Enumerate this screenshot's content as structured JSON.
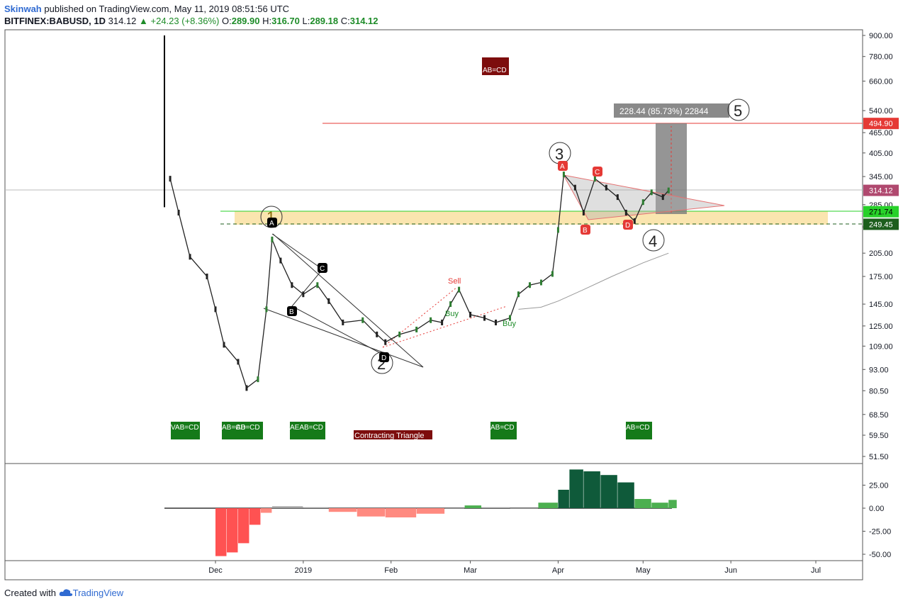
{
  "header": {
    "user": "Skinwah",
    "published": "published on TradingView.com, May 11, 2019 08:51:56 UTC",
    "symbol": "BITFINEX:BABUSD, 1D",
    "last": "314.12",
    "change": "▲ +24.23 (+8.36%)",
    "o_label": "O:",
    "o_value": "289.90",
    "h_label": "H:",
    "h_value": "316.70",
    "l_label": "L:",
    "l_value": "289.18",
    "c_label": "C:",
    "c_value": "314.12"
  },
  "footer": {
    "created_with": "Created with",
    "brand": "TradingView"
  },
  "colors": {
    "up": "#1e8c29",
    "down": "#d32f2f",
    "accent": "#2f6ad1"
  },
  "chart_data": {
    "type": "candlestick",
    "scale": "log",
    "price_ticks": [
      "900.00",
      "780.00",
      "660.00",
      "540.00",
      "465.00",
      "405.00",
      "345.00",
      "285.00",
      "245.00",
      "205.00",
      "175.00",
      "145.00",
      "125.00",
      "109.00",
      "93.00",
      "80.50",
      "68.50",
      "59.50",
      "51.50"
    ],
    "time_ticks": [
      "Dec",
      "2019",
      "Feb",
      "Mar",
      "Apr",
      "May",
      "Jun",
      "Jul"
    ],
    "price_labels": [
      {
        "text": "494.90",
        "price": 494.9,
        "color": "#e53935"
      },
      {
        "text": "314.12",
        "price": 314.12,
        "color": "#b0496f"
      },
      {
        "text": "271.74",
        "price": 271.74,
        "color": "#28d12a"
      },
      {
        "text": "249.45",
        "price": 249.45,
        "color": "#1d5e1d"
      }
    ],
    "price_path": [
      {
        "date": "2018-11-15",
        "price": 340
      },
      {
        "date": "2018-11-18",
        "price": 270
      },
      {
        "date": "2018-11-22",
        "price": 200
      },
      {
        "date": "2018-11-28",
        "price": 175
      },
      {
        "date": "2018-12-01",
        "price": 140
      },
      {
        "date": "2018-12-04",
        "price": 110
      },
      {
        "date": "2018-12-09",
        "price": 98
      },
      {
        "date": "2018-12-12",
        "price": 82
      },
      {
        "date": "2018-12-16",
        "price": 87
      },
      {
        "date": "2018-12-19",
        "price": 140
      },
      {
        "date": "2018-12-21",
        "price": 225
      },
      {
        "date": "2018-12-24",
        "price": 195
      },
      {
        "date": "2018-12-28",
        "price": 165
      },
      {
        "date": "2019-01-01",
        "price": 155
      },
      {
        "date": "2019-01-06",
        "price": 165
      },
      {
        "date": "2019-01-10",
        "price": 148
      },
      {
        "date": "2019-01-15",
        "price": 128
      },
      {
        "date": "2019-01-22",
        "price": 130
      },
      {
        "date": "2019-01-27",
        "price": 118
      },
      {
        "date": "2019-01-30",
        "price": 112
      },
      {
        "date": "2019-02-04",
        "price": 118
      },
      {
        "date": "2019-02-10",
        "price": 122
      },
      {
        "date": "2019-02-15",
        "price": 130
      },
      {
        "date": "2019-02-19",
        "price": 128
      },
      {
        "date": "2019-02-22",
        "price": 145
      },
      {
        "date": "2019-02-25",
        "price": 160
      },
      {
        "date": "2019-03-01",
        "price": 135
      },
      {
        "date": "2019-03-06",
        "price": 132
      },
      {
        "date": "2019-03-10",
        "price": 128
      },
      {
        "date": "2019-03-15",
        "price": 132
      },
      {
        "date": "2019-03-18",
        "price": 155
      },
      {
        "date": "2019-03-22",
        "price": 165
      },
      {
        "date": "2019-03-26",
        "price": 168
      },
      {
        "date": "2019-03-30",
        "price": 178
      },
      {
        "date": "2019-04-01",
        "price": 240
      },
      {
        "date": "2019-04-03",
        "price": 350
      },
      {
        "date": "2019-04-07",
        "price": 320
      },
      {
        "date": "2019-04-10",
        "price": 270
      },
      {
        "date": "2019-04-14",
        "price": 340
      },
      {
        "date": "2019-04-18",
        "price": 320
      },
      {
        "date": "2019-04-22",
        "price": 300
      },
      {
        "date": "2019-04-25",
        "price": 270
      },
      {
        "date": "2019-04-28",
        "price": 255
      },
      {
        "date": "2019-05-01",
        "price": 290
      },
      {
        "date": "2019-05-04",
        "price": 310
      },
      {
        "date": "2019-05-08",
        "price": 300
      },
      {
        "date": "2019-05-10",
        "price": 314
      }
    ],
    "moving_average": [
      {
        "date": "2019-03-18",
        "price": 140
      },
      {
        "date": "2019-03-26",
        "price": 142
      },
      {
        "date": "2019-04-01",
        "price": 148
      },
      {
        "date": "2019-04-10",
        "price": 160
      },
      {
        "date": "2019-04-20",
        "price": 175
      },
      {
        "date": "2019-05-01",
        "price": 192
      },
      {
        "date": "2019-05-10",
        "price": 205
      }
    ],
    "histogram": {
      "ticks": [
        "25.00",
        "0.00",
        "-25.00",
        "-50.00"
      ],
      "bars": [
        {
          "date": "2018-12-01",
          "value": -52
        },
        {
          "date": "2018-12-05",
          "value": -48
        },
        {
          "date": "2018-12-09",
          "value": -38
        },
        {
          "date": "2018-12-13",
          "value": -18
        },
        {
          "date": "2018-12-17",
          "value": -5
        },
        {
          "date": "2018-12-21",
          "value": 2
        },
        {
          "date": "2019-01-01",
          "value": 1
        },
        {
          "date": "2019-01-10",
          "value": -4
        },
        {
          "date": "2019-01-20",
          "value": -9
        },
        {
          "date": "2019-01-30",
          "value": -10
        },
        {
          "date": "2019-02-10",
          "value": -6
        },
        {
          "date": "2019-02-20",
          "value": 0
        },
        {
          "date": "2019-02-27",
          "value": 3
        },
        {
          "date": "2019-03-05",
          "value": 1
        },
        {
          "date": "2019-03-15",
          "value": 0
        },
        {
          "date": "2019-03-25",
          "value": 6
        },
        {
          "date": "2019-04-01",
          "value": 20
        },
        {
          "date": "2019-04-05",
          "value": 42
        },
        {
          "date": "2019-04-10",
          "value": 40
        },
        {
          "date": "2019-04-16",
          "value": 36
        },
        {
          "date": "2019-04-22",
          "value": 28
        },
        {
          "date": "2019-04-28",
          "value": 10
        },
        {
          "date": "2019-05-04",
          "value": 6
        },
        {
          "date": "2019-05-10",
          "value": 9
        }
      ]
    },
    "annotations": {
      "patterns": [
        "AB=CD",
        "AB=CD",
        "AB=CD",
        "AB=CD",
        "AB=CD",
        "AB=CD",
        "Contracting Triangle"
      ],
      "pattern_labels": [
        "VAB=CD",
        "AB=CD",
        "AEAB=CD",
        "AB=CD",
        "AB=CD"
      ],
      "waves": [
        "1",
        "2",
        "3",
        "4",
        "5"
      ],
      "points": [
        "A",
        "B",
        "C",
        "D",
        "A",
        "B",
        "C",
        "D"
      ],
      "signals": [
        "Sell",
        "Buy",
        "Buy"
      ],
      "measure": "228.44 (85.73%) 22844"
    }
  }
}
